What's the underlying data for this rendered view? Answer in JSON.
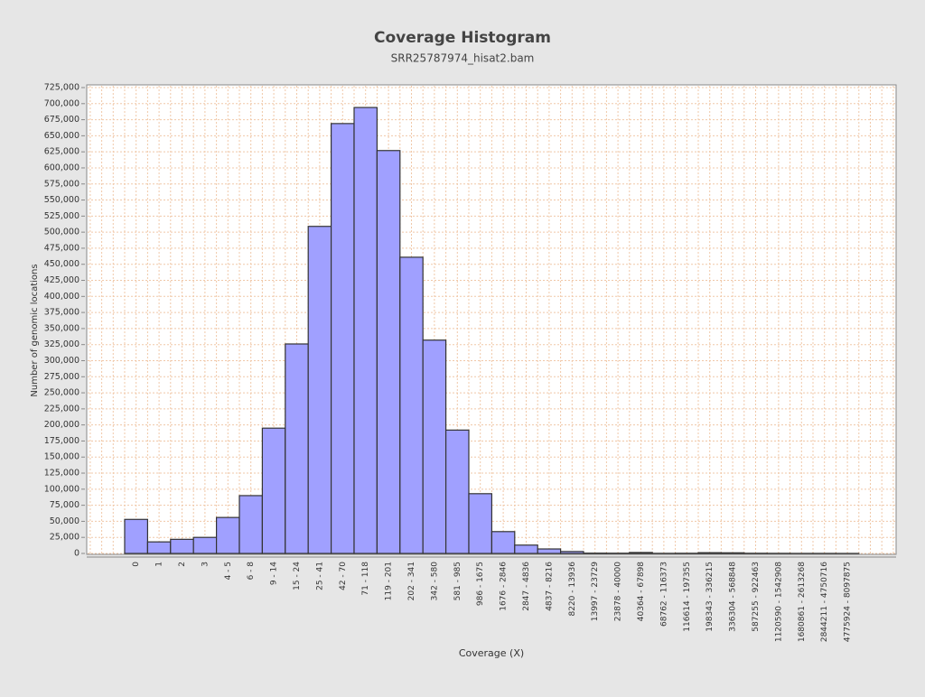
{
  "chart_data": {
    "type": "bar",
    "title": "Coverage Histogram",
    "subtitle": "SRR25787974_hisat2.bam",
    "x_label": "Coverage (X)",
    "y_label": "Number of genomic locations",
    "categories": [
      "0",
      "1",
      "2",
      "3",
      "4 - 5",
      "6 - 8",
      "9 - 14",
      "15 - 24",
      "25 - 41",
      "42 - 70",
      "71 - 118",
      "119 - 201",
      "202 - 341",
      "342 - 580",
      "581 - 985",
      "986 - 1675",
      "1676 - 2846",
      "2847 - 4836",
      "4837 - 8216",
      "8220 - 13936",
      "13997 - 23729",
      "23878 - 40000",
      "40364 - 67898",
      "68762 - 116373",
      "116614 - 197355",
      "198343 - 336215",
      "336304 - 568848",
      "587255 - 922463",
      "1120590 - 1542908",
      "1680861 - 2613268",
      "2844211 - 4750716",
      "4775924 - 8097875"
    ],
    "values": [
      53000,
      18000,
      22000,
      25000,
      56000,
      90000,
      195000,
      326000,
      509000,
      669000,
      694000,
      627000,
      461000,
      332000,
      192000,
      93000,
      34000,
      13000,
      7000,
      3000,
      500,
      400,
      1500,
      200,
      300,
      1200,
      1000,
      300,
      200,
      100,
      100,
      50
    ],
    "color": "#a0a0ff",
    "ylim": [
      0,
      725000
    ],
    "yticks": [
      0,
      {
        "value": 25000,
        "label": "25,000"
      },
      {
        "value": 50000,
        "label": "50,000"
      },
      {
        "value": 75000,
        "label": "75,000"
      },
      {
        "value": 100000,
        "label": "100,000"
      },
      {
        "value": 125000,
        "label": "125,000"
      },
      {
        "value": 150000,
        "label": "150,000"
      },
      {
        "value": 175000,
        "label": "175,000"
      },
      {
        "value": 200000,
        "label": "200,000"
      },
      {
        "value": 225000,
        "label": "225,000"
      },
      {
        "value": 250000,
        "label": "250,000"
      },
      {
        "value": 275000,
        "label": "275,000"
      },
      {
        "value": 300000,
        "label": "300,000"
      },
      {
        "value": 325000,
        "label": "325,000"
      },
      {
        "value": 350000,
        "label": "350,000"
      },
      {
        "value": 375000,
        "label": "375,000"
      },
      {
        "value": 400000,
        "label": "400,000"
      },
      {
        "value": 425000,
        "label": "425,000"
      },
      {
        "value": 450000,
        "label": "450,000"
      },
      {
        "value": 475000,
        "label": "475,000"
      },
      {
        "value": 500000,
        "label": "500,000"
      },
      {
        "value": 525000,
        "label": "525,000"
      },
      {
        "value": 550000,
        "label": "550,000"
      },
      {
        "value": 575000,
        "label": "575,000"
      },
      {
        "value": 600000,
        "label": "600,000"
      },
      {
        "value": 625000,
        "label": "625,000"
      },
      {
        "value": 650000,
        "label": "650,000"
      },
      {
        "value": 675000,
        "label": "675,000"
      },
      {
        "value": 700000,
        "label": "700,000"
      },
      {
        "value": 725000,
        "label": "725,000"
      }
    ],
    "grid": true
  }
}
